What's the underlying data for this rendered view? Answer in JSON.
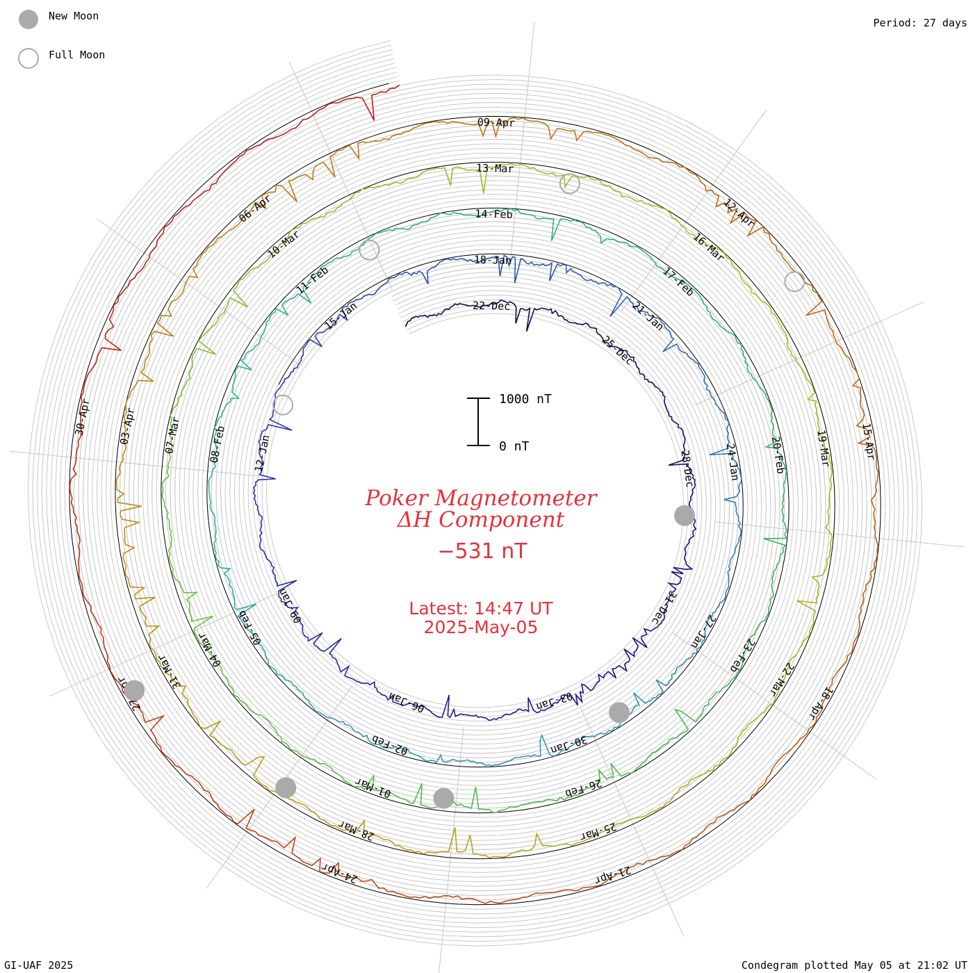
{
  "legend": {
    "new_moon_label": "New Moon",
    "full_moon_label": "Full Moon",
    "moon_color": "#aaaaaa"
  },
  "period_label": "Period: 27 days",
  "footer_left": "GI-UAF 2025",
  "footer_right": "Condegram plotted May 05 at 21:02 UT",
  "center": {
    "title_line1": "Poker Magnetometer",
    "title_line2": "ΔH Component",
    "current_value": "−531 nT",
    "latest_label": "Latest: 14:47 UT",
    "latest_date": "2025-May-05",
    "text_color": "#e8303a"
  },
  "chart_data": {
    "type": "line",
    "geometry": "spiral",
    "period_days": 27,
    "scale_bar": {
      "top_label": "1000 nT",
      "bottom_label": "0 nT",
      "span_nT": 1000
    },
    "colors": [
      "#0c0830",
      "#1c1080",
      "#2838b0",
      "#3080b0",
      "#30b0a0",
      "#30b060",
      "#60c040",
      "#a8c020",
      "#b8a018",
      "#c07010",
      "#c05010",
      "#c01818"
    ],
    "date_labels": [
      "22-Dec",
      "25-Dec",
      "28-Dec",
      "31-Dec",
      "03-Jan",
      "06-Jan",
      "09-Jan",
      "12-Jan",
      "15-Jan",
      "18-Jan",
      "21-Jan",
      "24-Jan",
      "27-Jan",
      "30-Jan",
      "02-Feb",
      "05-Feb",
      "08-Feb",
      "11-Feb",
      "14-Feb",
      "17-Feb",
      "20-Feb",
      "23-Feb",
      "26-Feb",
      "01-Mar",
      "04-Mar",
      "07-Mar",
      "10-Mar",
      "13-Mar",
      "16-Mar",
      "19-Mar",
      "22-Mar",
      "25-Mar",
      "28-Mar",
      "31-Mar",
      "03-Apr",
      "06-Apr",
      "09-Apr",
      "12-Apr",
      "15-Apr",
      "18-Apr",
      "21-Apr",
      "24-Apr",
      "27-Apr",
      "30-Apr"
    ],
    "new_moons": [
      "29-Dec",
      "29-Jan",
      "28-Feb",
      "29-Mar",
      "27-Apr"
    ],
    "full_moons": [
      "13-Jan",
      "12-Feb",
      "14-Mar",
      "13-Apr"
    ],
    "x_start": "2024-12-20",
    "x_end": "2025-05-05"
  }
}
